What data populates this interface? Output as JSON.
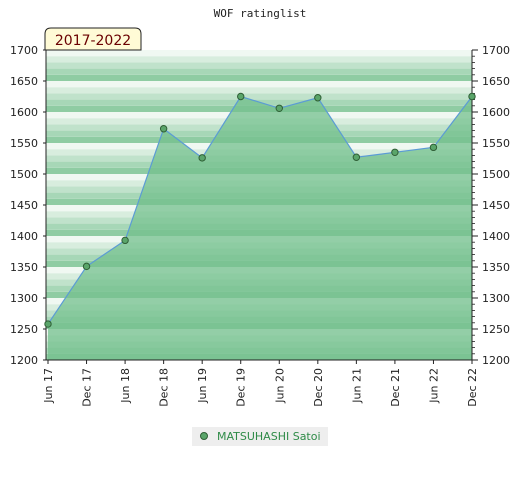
{
  "chart_data": {
    "type": "area",
    "title": "WOF ratinglist",
    "period_badge": "2017-2022",
    "x": [
      "Jun 17",
      "Dec 17",
      "Jun 18",
      "Dec 18",
      "Jun 19",
      "Dec 19",
      "Jun 20",
      "Dec 20",
      "Jun 21",
      "Dec 21",
      "Jun 22",
      "Dec 22"
    ],
    "series": [
      {
        "name": "MATSUHASHI Satoi",
        "values": [
          1258,
          1351,
          1393,
          1573,
          1526,
          1625,
          1606,
          1623,
          1527,
          1535,
          1543,
          1625
        ]
      }
    ],
    "ylim": [
      1200,
      1700
    ],
    "yticks": [
      1200,
      1250,
      1300,
      1350,
      1400,
      1450,
      1500,
      1550,
      1600,
      1650,
      1700
    ],
    "y_axes": "both",
    "legend_position": "bottom-center",
    "grid": false,
    "colors": {
      "line": "#5b9bd5",
      "marker_fill": "#5aa56a",
      "marker_stroke": "#2f5f36",
      "area_fill": "#74c08d",
      "band_dark": "#8fcca3",
      "band_light": "#f0f8f2",
      "badge_bg": "#fffbd6",
      "badge_text": "#6a0000",
      "legend_text": "#2e8b47",
      "legend_bg": "#eeeeee"
    }
  }
}
